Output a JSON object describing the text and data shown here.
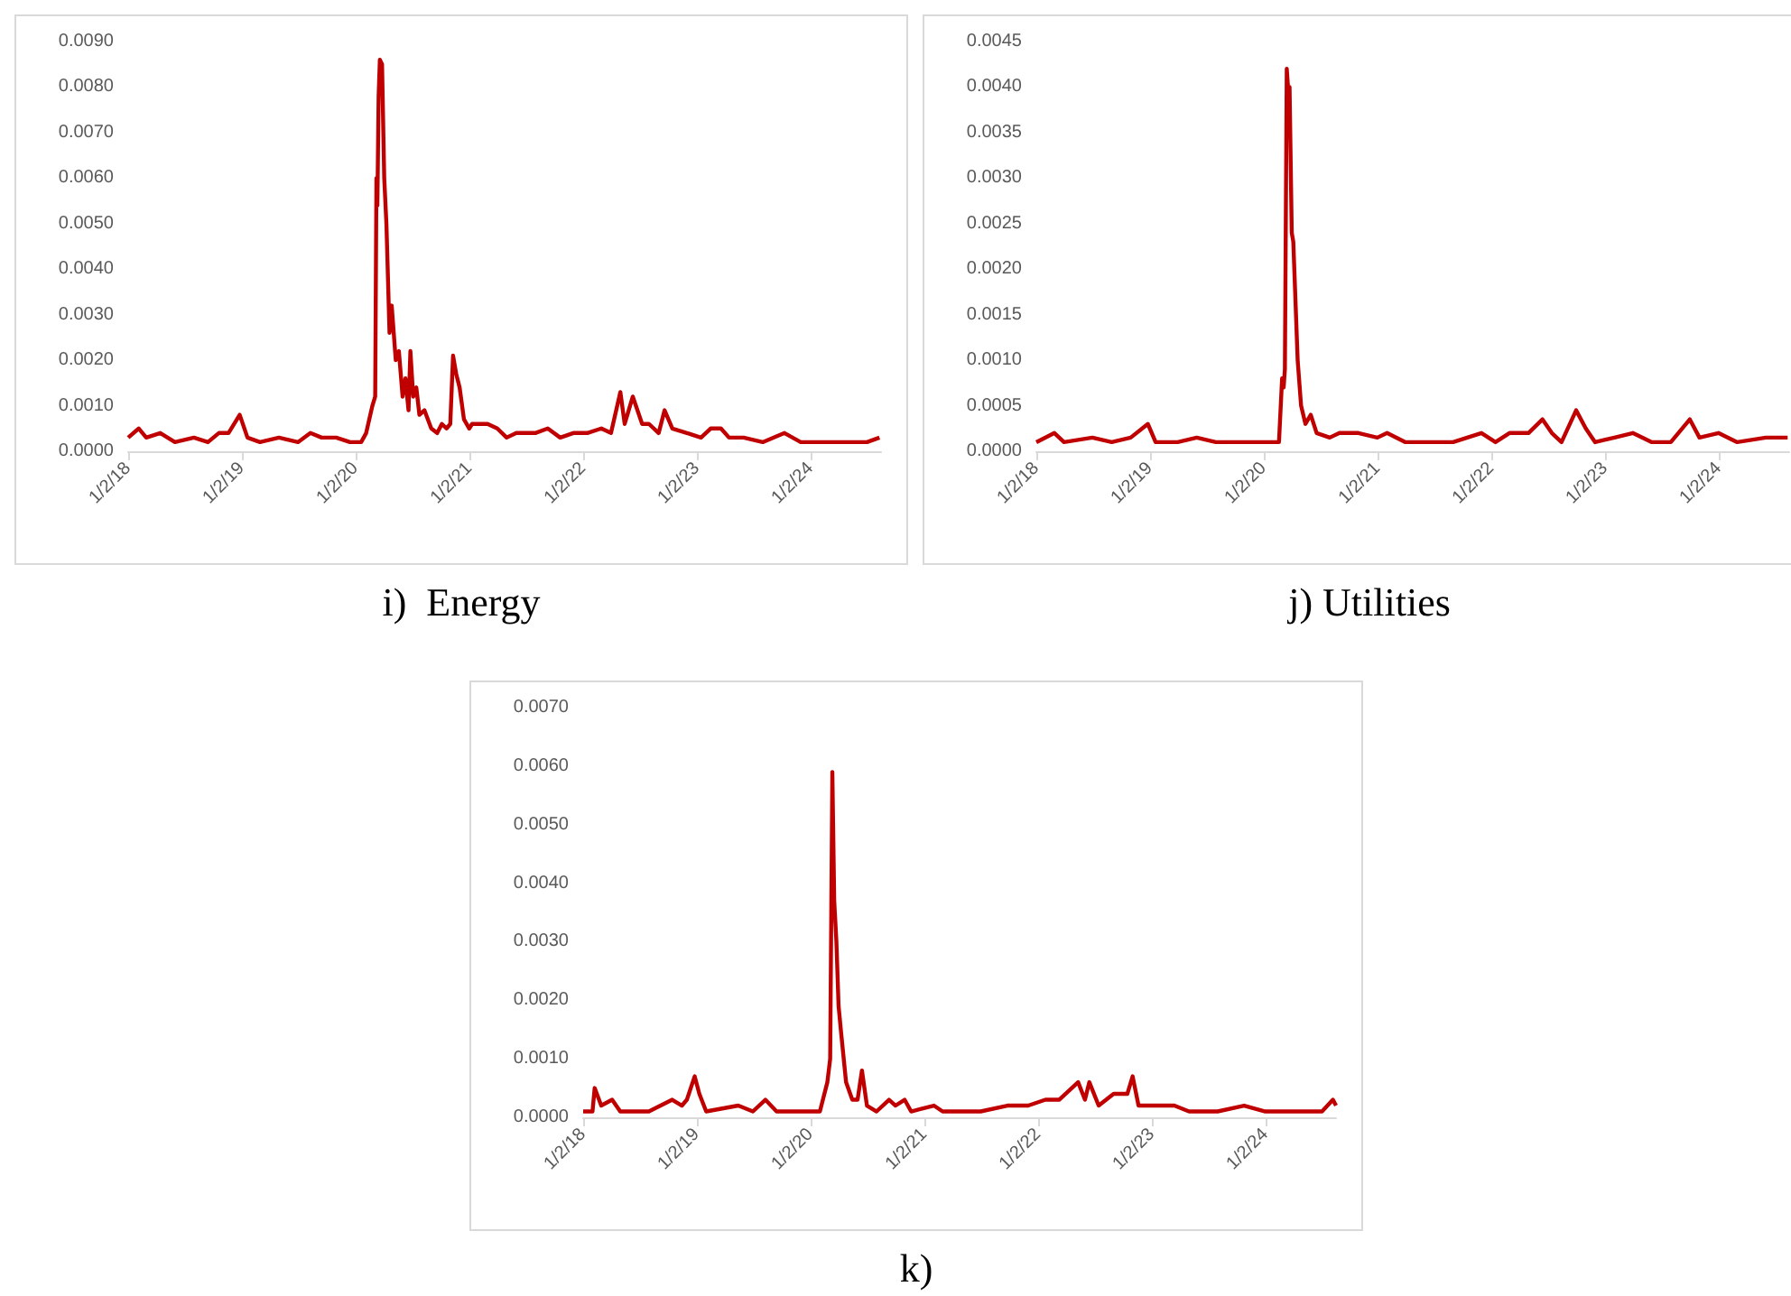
{
  "chart_data": [
    {
      "type": "line",
      "title": "i)  Energy",
      "color": "#c00000",
      "marker": "none",
      "xlim": [
        "2018-01-02",
        "2024-08-15"
      ],
      "ylim": [
        0,
        0.009
      ],
      "xticks": [
        {
          "value": "2018-01-02",
          "label": "1/2/18"
        },
        {
          "value": "2019-01-02",
          "label": "1/2/19"
        },
        {
          "value": "2020-01-02",
          "label": "1/2/20"
        },
        {
          "value": "2021-01-02",
          "label": "1/2/21"
        },
        {
          "value": "2022-01-02",
          "label": "1/2/22"
        },
        {
          "value": "2023-01-02",
          "label": "1/2/23"
        },
        {
          "value": "2024-01-02",
          "label": "1/2/24"
        }
      ],
      "yticks": [
        {
          "value": 0,
          "label": "0.0000"
        },
        {
          "value": 0.001,
          "label": "0.0010"
        },
        {
          "value": 0.002,
          "label": "0.0020"
        },
        {
          "value": 0.003,
          "label": "0.0030"
        },
        {
          "value": 0.004,
          "label": "0.0040"
        },
        {
          "value": 0.005,
          "label": "0.0050"
        },
        {
          "value": 0.006,
          "label": "0.0060"
        },
        {
          "value": 0.007,
          "label": "0.0070"
        },
        {
          "value": 0.008,
          "label": "0.0080"
        },
        {
          "value": 0.009,
          "label": "0.0090"
        }
      ],
      "x": [
        "2018-01-02",
        "2018-02-05",
        "2018-03-01",
        "2018-04-15",
        "2018-06-01",
        "2018-08-01",
        "2018-09-15",
        "2018-10-20",
        "2018-11-20",
        "2018-12-26",
        "2019-01-20",
        "2019-03-01",
        "2019-05-01",
        "2019-07-01",
        "2019-08-10",
        "2019-09-15",
        "2019-11-01",
        "2019-12-15",
        "2020-01-20",
        "2020-02-05",
        "2020-02-25",
        "2020-03-05",
        "2020-03-09",
        "2020-03-12",
        "2020-03-16",
        "2020-03-20",
        "2020-03-27",
        "2020-04-03",
        "2020-04-10",
        "2020-04-20",
        "2020-04-27",
        "2020-05-10",
        "2020-05-20",
        "2020-06-01",
        "2020-06-10",
        "2020-06-20",
        "2020-06-26",
        "2020-07-05",
        "2020-07-15",
        "2020-07-25",
        "2020-08-10",
        "2020-09-01",
        "2020-09-20",
        "2020-10-05",
        "2020-10-20",
        "2020-11-01",
        "2020-11-10",
        "2020-11-20",
        "2020-12-01",
        "2020-12-15",
        "2021-01-01",
        "2021-01-10",
        "2021-03-01",
        "2021-04-01",
        "2021-05-01",
        "2021-06-01",
        "2021-07-01",
        "2021-08-01",
        "2021-09-10",
        "2021-10-20",
        "2021-12-01",
        "2022-01-15",
        "2022-03-01",
        "2022-04-01",
        "2022-05-01",
        "2022-05-15",
        "2022-06-10",
        "2022-07-10",
        "2022-08-01",
        "2022-09-01",
        "2022-09-20",
        "2022-10-15",
        "2022-12-01",
        "2023-01-15",
        "2023-02-15",
        "2023-03-20",
        "2023-04-15",
        "2023-06-01",
        "2023-08-01",
        "2023-10-10",
        "2023-12-01",
        "2024-03-01",
        "2024-05-01",
        "2024-07-01",
        "2024-08-10"
      ],
      "values": [
        0.0003,
        0.0005,
        0.0003,
        0.0004,
        0.0002,
        0.0003,
        0.0002,
        0.0004,
        0.0004,
        0.0008,
        0.0003,
        0.0002,
        0.0003,
        0.0002,
        0.0004,
        0.0003,
        0.0003,
        0.0002,
        0.0002,
        0.0004,
        0.001,
        0.0012,
        0.006,
        0.0054,
        0.0078,
        0.0086,
        0.0085,
        0.006,
        0.005,
        0.0026,
        0.0032,
        0.002,
        0.0022,
        0.0012,
        0.0016,
        0.0009,
        0.0022,
        0.0012,
        0.0014,
        0.0008,
        0.0009,
        0.0005,
        0.0004,
        0.0006,
        0.0005,
        0.0006,
        0.0021,
        0.0017,
        0.0014,
        0.0007,
        0.0005,
        0.0006,
        0.0006,
        0.0005,
        0.0003,
        0.0004,
        0.0004,
        0.0004,
        0.0005,
        0.0003,
        0.0004,
        0.0004,
        0.0005,
        0.0004,
        0.0013,
        0.0006,
        0.0012,
        0.0006,
        0.0006,
        0.0004,
        0.0009,
        0.0005,
        0.0004,
        0.0003,
        0.0005,
        0.0005,
        0.0003,
        0.0003,
        0.0002,
        0.0004,
        0.0002,
        0.0002,
        0.0002,
        0.0002,
        0.0003
      ]
    },
    {
      "type": "line",
      "title": "j) Utilities",
      "color": "#c00000",
      "marker": "none",
      "xlim": [
        "2018-01-02",
        "2024-08-15"
      ],
      "ylim": [
        0,
        0.0045
      ],
      "xticks": [
        {
          "value": "2018-01-02",
          "label": "1/2/18"
        },
        {
          "value": "2019-01-02",
          "label": "1/2/19"
        },
        {
          "value": "2020-01-02",
          "label": "1/2/20"
        },
        {
          "value": "2021-01-02",
          "label": "1/2/21"
        },
        {
          "value": "2022-01-02",
          "label": "1/2/22"
        },
        {
          "value": "2023-01-02",
          "label": "1/2/23"
        },
        {
          "value": "2024-01-02",
          "label": "1/2/24"
        }
      ],
      "yticks": [
        {
          "value": 0,
          "label": "0.0000"
        },
        {
          "value": 0.0005,
          "label": "0.0005"
        },
        {
          "value": 0.001,
          "label": "0.0010"
        },
        {
          "value": 0.0015,
          "label": "0.0015"
        },
        {
          "value": 0.002,
          "label": "0.0020"
        },
        {
          "value": 0.0025,
          "label": "0.0025"
        },
        {
          "value": 0.003,
          "label": "0.0030"
        },
        {
          "value": 0.0035,
          "label": "0.0035"
        },
        {
          "value": 0.004,
          "label": "0.0040"
        },
        {
          "value": 0.0045,
          "label": "0.0045"
        }
      ],
      "x": [
        "2018-01-02",
        "2018-03-01",
        "2018-04-01",
        "2018-07-01",
        "2018-09-01",
        "2018-11-01",
        "2018-12-26",
        "2019-01-20",
        "2019-04-01",
        "2019-06-01",
        "2019-08-01",
        "2019-11-01",
        "2020-01-20",
        "2020-02-20",
        "2020-03-01",
        "2020-03-06",
        "2020-03-10",
        "2020-03-16",
        "2020-03-20",
        "2020-03-25",
        "2020-04-01",
        "2020-04-06",
        "2020-04-20",
        "2020-05-01",
        "2020-05-15",
        "2020-06-01",
        "2020-06-20",
        "2020-08-01",
        "2020-09-01",
        "2020-11-01",
        "2021-01-01",
        "2021-02-01",
        "2021-04-01",
        "2021-06-01",
        "2021-09-01",
        "2021-12-01",
        "2022-01-15",
        "2022-03-01",
        "2022-05-01",
        "2022-06-15",
        "2022-07-15",
        "2022-08-15",
        "2022-10-01",
        "2022-11-01",
        "2022-12-01",
        "2023-02-01",
        "2023-04-01",
        "2023-06-01",
        "2023-08-01",
        "2023-10-01",
        "2023-11-01",
        "2024-01-01",
        "2024-03-01",
        "2024-06-01",
        "2024-08-10"
      ],
      "values": [
        0.0001,
        0.0002,
        0.0001,
        0.00015,
        0.0001,
        0.00015,
        0.0003,
        0.0001,
        0.0001,
        0.00015,
        0.0001,
        0.0001,
        0.0001,
        0.0001,
        0.0008,
        0.0007,
        0.0009,
        0.0042,
        0.004,
        0.004,
        0.0024,
        0.0023,
        0.001,
        0.0005,
        0.0003,
        0.0004,
        0.0002,
        0.00015,
        0.0002,
        0.0002,
        0.00015,
        0.0002,
        0.0001,
        0.0001,
        0.0001,
        0.0002,
        0.0001,
        0.0002,
        0.0002,
        0.00035,
        0.0002,
        0.0001,
        0.00045,
        0.00025,
        0.0001,
        0.00015,
        0.0002,
        0.0001,
        0.0001,
        0.00035,
        0.00015,
        0.0002,
        0.0001,
        0.00015,
        0.00015
      ]
    },
    {
      "type": "line",
      "title": "k)",
      "color": "#c00000",
      "marker": "none",
      "xlim": [
        "2018-01-02",
        "2024-08-15"
      ],
      "ylim": [
        0,
        0.007
      ],
      "xticks": [
        {
          "value": "2018-01-02",
          "label": "1/2/18"
        },
        {
          "value": "2019-01-02",
          "label": "1/2/19"
        },
        {
          "value": "2020-01-02",
          "label": "1/2/20"
        },
        {
          "value": "2021-01-02",
          "label": "1/2/21"
        },
        {
          "value": "2022-01-02",
          "label": "1/2/22"
        },
        {
          "value": "2023-01-02",
          "label": "1/2/23"
        },
        {
          "value": "2024-01-02",
          "label": "1/2/24"
        }
      ],
      "yticks": [
        {
          "value": 0,
          "label": "0.0000"
        },
        {
          "value": 0.001,
          "label": "0.0010"
        },
        {
          "value": 0.002,
          "label": "0.0020"
        },
        {
          "value": 0.003,
          "label": "0.0030"
        },
        {
          "value": 0.004,
          "label": "0.0040"
        },
        {
          "value": 0.005,
          "label": "0.0050"
        },
        {
          "value": 0.006,
          "label": "0.0060"
        },
        {
          "value": 0.007,
          "label": "0.0070"
        }
      ],
      "x": [
        "2018-01-02",
        "2018-02-01",
        "2018-02-08",
        "2018-03-01",
        "2018-04-05",
        "2018-05-01",
        "2018-08-01",
        "2018-10-15",
        "2018-11-15",
        "2018-12-01",
        "2018-12-26",
        "2019-01-10",
        "2019-02-01",
        "2019-05-15",
        "2019-07-01",
        "2019-08-10",
        "2019-09-15",
        "2019-12-01",
        "2020-02-01",
        "2020-02-25",
        "2020-03-05",
        "2020-03-12",
        "2020-03-18",
        "2020-03-25",
        "2020-04-01",
        "2020-04-10",
        "2020-04-25",
        "2020-05-15",
        "2020-06-01",
        "2020-06-15",
        "2020-07-01",
        "2020-08-01",
        "2020-09-10",
        "2020-10-01",
        "2020-10-30",
        "2020-11-20",
        "2021-02-01",
        "2021-03-01",
        "2021-05-15",
        "2021-07-01",
        "2021-09-25",
        "2021-12-01",
        "2022-01-25",
        "2022-03-10",
        "2022-05-10",
        "2022-06-01",
        "2022-06-15",
        "2022-07-15",
        "2022-09-01",
        "2022-10-15",
        "2022-11-01",
        "2022-11-20",
        "2023-01-01",
        "2023-03-15",
        "2023-05-01",
        "2023-08-01",
        "2023-10-25",
        "2024-01-01",
        "2024-04-20",
        "2024-07-01",
        "2024-08-05",
        "2024-08-15"
      ],
      "values": [
        0.0001,
        0.0001,
        0.0005,
        0.0002,
        0.0003,
        0.0001,
        0.0001,
        0.0003,
        0.0002,
        0.0003,
        0.0007,
        0.0004,
        0.0001,
        0.0002,
        0.0001,
        0.0003,
        0.0001,
        0.0001,
        0.0001,
        0.0006,
        0.001,
        0.0059,
        0.0037,
        0.003,
        0.0019,
        0.0014,
        0.0006,
        0.0003,
        0.0003,
        0.0008,
        0.0002,
        0.0001,
        0.0003,
        0.0002,
        0.0003,
        0.0001,
        0.0002,
        0.0001,
        0.0001,
        0.0001,
        0.0002,
        0.0002,
        0.0003,
        0.0003,
        0.0006,
        0.0003,
        0.0006,
        0.0002,
        0.0004,
        0.0004,
        0.0007,
        0.0002,
        0.0002,
        0.0002,
        0.0001,
        0.0001,
        0.0002,
        0.0001,
        0.0001,
        0.0001,
        0.0003,
        0.0002
      ]
    }
  ]
}
